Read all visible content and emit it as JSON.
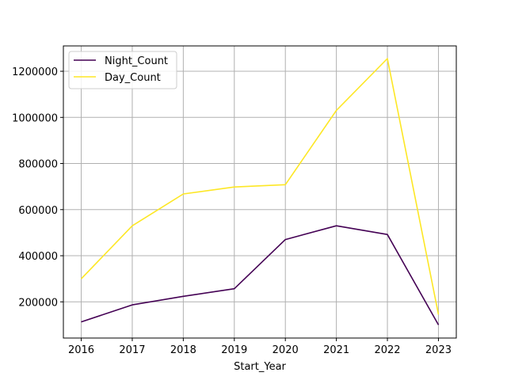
{
  "chart_data": {
    "type": "line",
    "title": "",
    "xlabel": "Start_Year",
    "ylabel": "",
    "x": [
      2016,
      2017,
      2018,
      2019,
      2020,
      2021,
      2022,
      2023
    ],
    "x_tick_labels": [
      "2016",
      "2017",
      "2018",
      "2019",
      "2020",
      "2021",
      "2022",
      "2023"
    ],
    "y_ticks": [
      200000,
      400000,
      600000,
      800000,
      1000000,
      1200000
    ],
    "y_tick_labels": [
      "200000",
      "400000",
      "600000",
      "800000",
      "1000000",
      "1200000"
    ],
    "xlim": [
      2015.65,
      2023.35
    ],
    "ylim": [
      43000,
      1310000
    ],
    "grid": true,
    "legend_position": "upper-left",
    "series": [
      {
        "name": "Night_Count",
        "color": "#440154",
        "values": [
          113000,
          187000,
          224000,
          257000,
          470000,
          530000,
          492000,
          100000
        ]
      },
      {
        "name": "Day_Count",
        "color": "#fde725",
        "values": [
          300000,
          530000,
          668000,
          698000,
          708000,
          1030000,
          1255000,
          145000
        ]
      }
    ]
  }
}
